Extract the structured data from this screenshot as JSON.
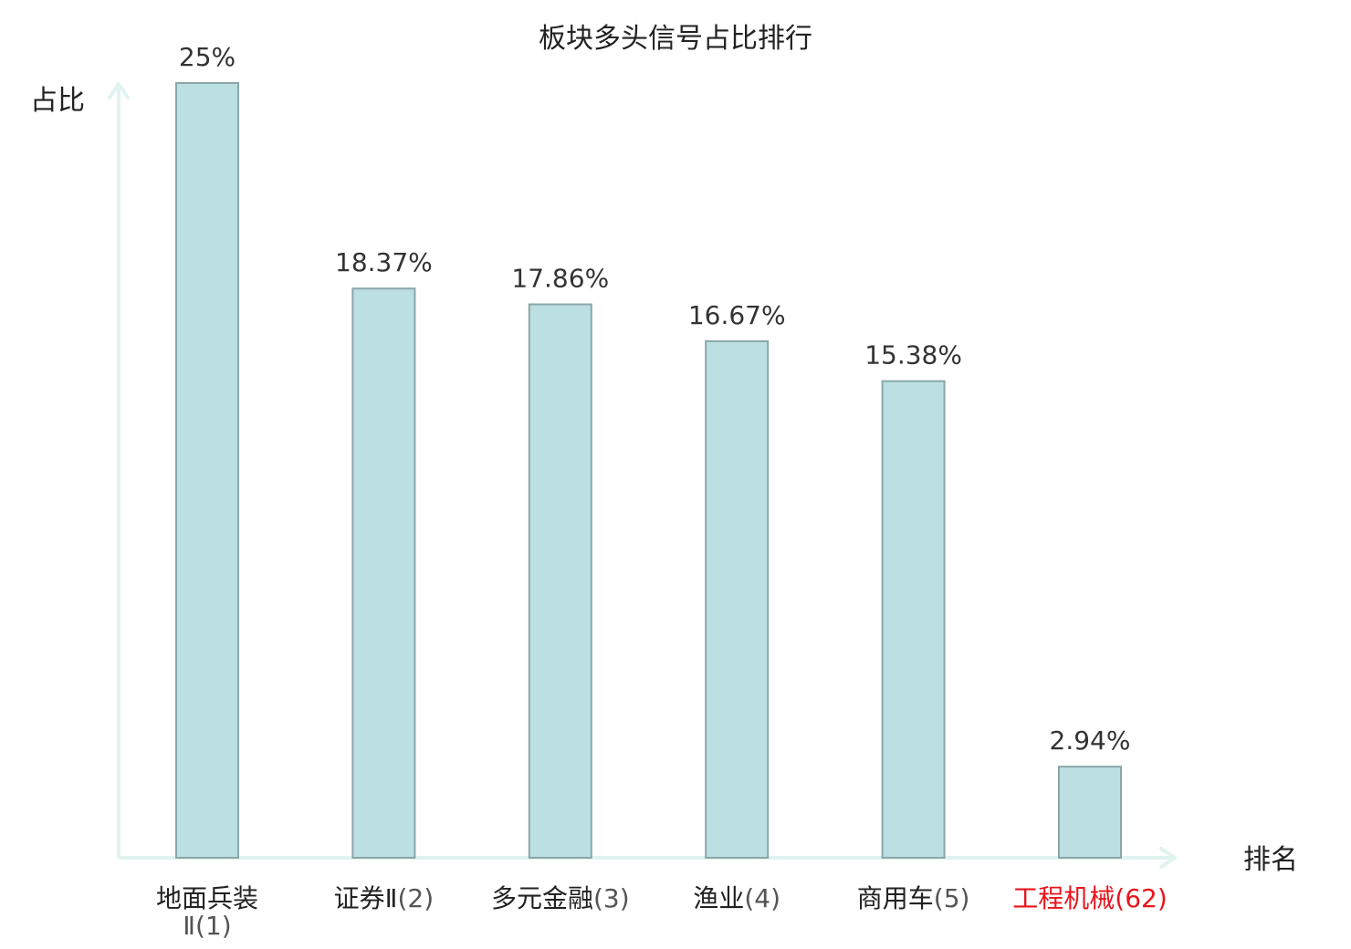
{
  "chart_data": {
    "type": "bar",
    "title": "板块多头信号占比排行",
    "xlabel": "排名",
    "ylabel": "占比",
    "categories": [
      {
        "name": "地面兵装Ⅱ",
        "rank": "(1)",
        "highlight": false
      },
      {
        "name": "证券Ⅱ",
        "rank": "(2)",
        "highlight": false
      },
      {
        "name": "多元金融",
        "rank": "(3)",
        "highlight": false
      },
      {
        "name": "渔业",
        "rank": "(4)",
        "highlight": false
      },
      {
        "name": "商用车",
        "rank": "(5)",
        "highlight": false
      },
      {
        "name": "工程机械",
        "rank": "(62)",
        "highlight": true
      }
    ],
    "values": [
      25,
      18.37,
      17.86,
      16.67,
      15.38,
      2.94
    ],
    "value_labels": [
      "25%",
      "18.37%",
      "17.86%",
      "16.67%",
      "15.38%",
      "2.94%"
    ],
    "ylim": [
      0,
      25
    ],
    "grid": false,
    "legend": "none",
    "colors": {
      "bar_fill": "#bce0e2",
      "bar_stroke": "#8aa7a8",
      "axis": "#e0f3ef",
      "highlight": "#e8141c",
      "text": "#222222"
    }
  }
}
